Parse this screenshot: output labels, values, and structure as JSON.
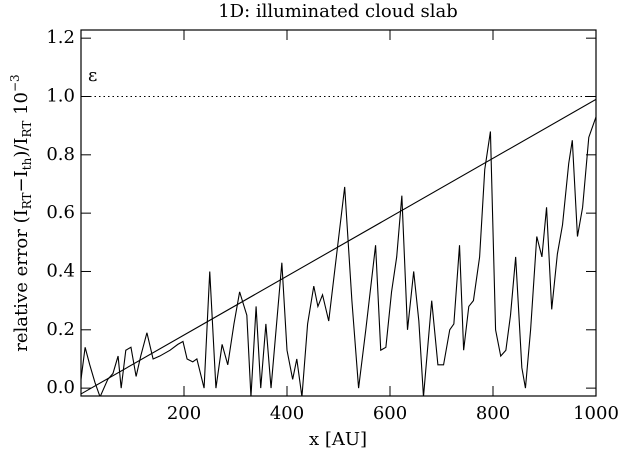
{
  "chart_data": {
    "type": "line",
    "title": "1D: illuminated cloud slab",
    "x_label": "x [AU]",
    "y_label_parts": [
      "relative error (I",
      "RT",
      "−I",
      "th",
      ")/I",
      "RT",
      " 10",
      "−3"
    ],
    "annotation": "ε",
    "xlim": [
      0,
      1000
    ],
    "ylim": [
      -0.027,
      1.228
    ],
    "xticks": [
      200,
      400,
      600,
      800,
      1000
    ],
    "yticks": [
      {
        "value": 0,
        "label": "0.0"
      },
      {
        "value": 0.2,
        "label": "0.2"
      },
      {
        "value": 0.4,
        "label": "0.4"
      },
      {
        "value": 0.6,
        "label": "0.6"
      },
      {
        "value": 0.8,
        "label": "0.8"
      },
      {
        "value": 1,
        "label": "1.0"
      },
      {
        "value": 1.2,
        "label": "1.2"
      }
    ],
    "series": [
      {
        "color": "#000000",
        "dash": "solid",
        "x": [
          0,
          8,
          17,
          27,
          37,
          52,
          62,
          72,
          78,
          87,
          97,
          107,
          116,
          128,
          140,
          153,
          173,
          188,
          198,
          206,
          217,
          225,
          239,
          250,
          262,
          274,
          285,
          297,
          308,
          322,
          330,
          340,
          349,
          359,
          369,
          390,
          400,
          411,
          419,
          429,
          440,
          452,
          460,
          469,
          481,
          512,
          526,
          539,
          553,
          572,
          582,
          592,
          603,
          613,
          623,
          634,
          646,
          656,
          665,
          681,
          693,
          704,
          716,
          724,
          735,
          743,
          753,
          762,
          774,
          784,
          795,
          805,
          815,
          825,
          834,
          844,
          856,
          863,
          873,
          885,
          895,
          904,
          914,
          925,
          935,
          947,
          954,
          964,
          974,
          986,
          1000
        ],
        "values": [
          0.03,
          0.14,
          0.08,
          0.02,
          -0.03,
          0.03,
          0.05,
          0.11,
          0.0,
          0.13,
          0.14,
          0.04,
          0.11,
          0.19,
          0.1,
          0.11,
          0.13,
          0.15,
          0.16,
          0.1,
          0.09,
          0.1,
          0.0,
          0.4,
          0.0,
          0.15,
          0.08,
          0.22,
          0.33,
          0.25,
          -0.03,
          0.28,
          0.0,
          0.22,
          0.0,
          0.43,
          0.13,
          0.03,
          0.1,
          -0.03,
          0.22,
          0.35,
          0.28,
          0.32,
          0.23,
          0.69,
          0.3,
          0.0,
          0.2,
          0.49,
          0.13,
          0.14,
          0.33,
          0.45,
          0.66,
          0.2,
          0.4,
          0.23,
          -0.03,
          0.3,
          0.08,
          0.08,
          0.2,
          0.22,
          0.49,
          0.13,
          0.28,
          0.3,
          0.45,
          0.75,
          0.88,
          0.2,
          0.11,
          0.13,
          0.25,
          0.45,
          0.07,
          0.0,
          0.2,
          0.52,
          0.45,
          0.62,
          0.27,
          0.46,
          0.56,
          0.77,
          0.85,
          0.52,
          0.62,
          0.86,
          0.93
        ]
      },
      {
        "color": "#000000",
        "dash": "solid",
        "x": [
          0,
          1000
        ],
        "values": [
          -0.02,
          0.99
        ]
      },
      {
        "color": "#000000",
        "dash": "dotted",
        "x": [
          0,
          1000
        ],
        "values": [
          1.0,
          1.0
        ]
      }
    ]
  }
}
